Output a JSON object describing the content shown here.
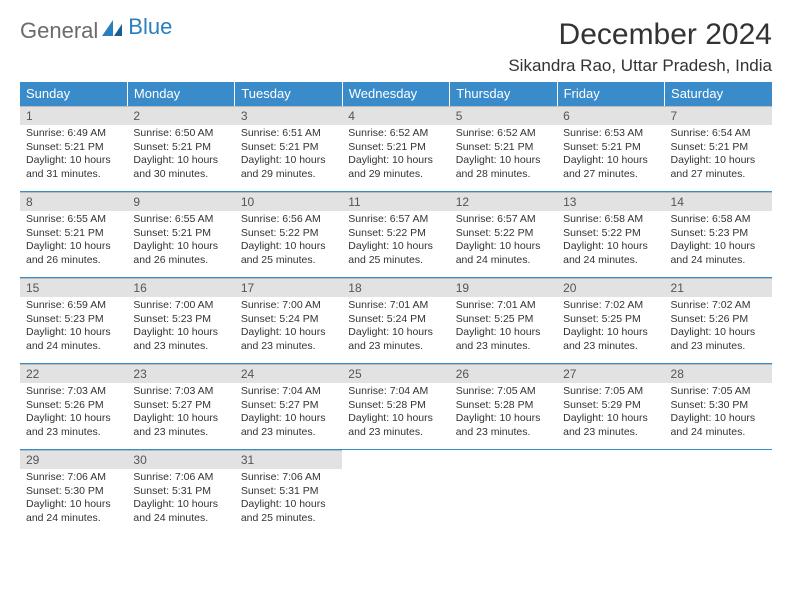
{
  "brand": {
    "first": "General",
    "second": "Blue"
  },
  "title": "December 2024",
  "location": "Sikandra Rao, Uttar Pradesh, India",
  "colors": {
    "header_bg": "#3a8bc9",
    "header_fg": "#ffffff",
    "daynum_bg": "#e2e2e2",
    "border": "#3a8bc9",
    "text": "#333333",
    "brand_grey": "#6b6b6b",
    "brand_blue": "#2a7fbf"
  },
  "weekdays": [
    "Sunday",
    "Monday",
    "Tuesday",
    "Wednesday",
    "Thursday",
    "Friday",
    "Saturday"
  ],
  "days": [
    {
      "n": "1",
      "sunrise": "Sunrise: 6:49 AM",
      "sunset": "Sunset: 5:21 PM",
      "daylight": "Daylight: 10 hours and 31 minutes."
    },
    {
      "n": "2",
      "sunrise": "Sunrise: 6:50 AM",
      "sunset": "Sunset: 5:21 PM",
      "daylight": "Daylight: 10 hours and 30 minutes."
    },
    {
      "n": "3",
      "sunrise": "Sunrise: 6:51 AM",
      "sunset": "Sunset: 5:21 PM",
      "daylight": "Daylight: 10 hours and 29 minutes."
    },
    {
      "n": "4",
      "sunrise": "Sunrise: 6:52 AM",
      "sunset": "Sunset: 5:21 PM",
      "daylight": "Daylight: 10 hours and 29 minutes."
    },
    {
      "n": "5",
      "sunrise": "Sunrise: 6:52 AM",
      "sunset": "Sunset: 5:21 PM",
      "daylight": "Daylight: 10 hours and 28 minutes."
    },
    {
      "n": "6",
      "sunrise": "Sunrise: 6:53 AM",
      "sunset": "Sunset: 5:21 PM",
      "daylight": "Daylight: 10 hours and 27 minutes."
    },
    {
      "n": "7",
      "sunrise": "Sunrise: 6:54 AM",
      "sunset": "Sunset: 5:21 PM",
      "daylight": "Daylight: 10 hours and 27 minutes."
    },
    {
      "n": "8",
      "sunrise": "Sunrise: 6:55 AM",
      "sunset": "Sunset: 5:21 PM",
      "daylight": "Daylight: 10 hours and 26 minutes."
    },
    {
      "n": "9",
      "sunrise": "Sunrise: 6:55 AM",
      "sunset": "Sunset: 5:21 PM",
      "daylight": "Daylight: 10 hours and 26 minutes."
    },
    {
      "n": "10",
      "sunrise": "Sunrise: 6:56 AM",
      "sunset": "Sunset: 5:22 PM",
      "daylight": "Daylight: 10 hours and 25 minutes."
    },
    {
      "n": "11",
      "sunrise": "Sunrise: 6:57 AM",
      "sunset": "Sunset: 5:22 PM",
      "daylight": "Daylight: 10 hours and 25 minutes."
    },
    {
      "n": "12",
      "sunrise": "Sunrise: 6:57 AM",
      "sunset": "Sunset: 5:22 PM",
      "daylight": "Daylight: 10 hours and 24 minutes."
    },
    {
      "n": "13",
      "sunrise": "Sunrise: 6:58 AM",
      "sunset": "Sunset: 5:22 PM",
      "daylight": "Daylight: 10 hours and 24 minutes."
    },
    {
      "n": "14",
      "sunrise": "Sunrise: 6:58 AM",
      "sunset": "Sunset: 5:23 PM",
      "daylight": "Daylight: 10 hours and 24 minutes."
    },
    {
      "n": "15",
      "sunrise": "Sunrise: 6:59 AM",
      "sunset": "Sunset: 5:23 PM",
      "daylight": "Daylight: 10 hours and 24 minutes."
    },
    {
      "n": "16",
      "sunrise": "Sunrise: 7:00 AM",
      "sunset": "Sunset: 5:23 PM",
      "daylight": "Daylight: 10 hours and 23 minutes."
    },
    {
      "n": "17",
      "sunrise": "Sunrise: 7:00 AM",
      "sunset": "Sunset: 5:24 PM",
      "daylight": "Daylight: 10 hours and 23 minutes."
    },
    {
      "n": "18",
      "sunrise": "Sunrise: 7:01 AM",
      "sunset": "Sunset: 5:24 PM",
      "daylight": "Daylight: 10 hours and 23 minutes."
    },
    {
      "n": "19",
      "sunrise": "Sunrise: 7:01 AM",
      "sunset": "Sunset: 5:25 PM",
      "daylight": "Daylight: 10 hours and 23 minutes."
    },
    {
      "n": "20",
      "sunrise": "Sunrise: 7:02 AM",
      "sunset": "Sunset: 5:25 PM",
      "daylight": "Daylight: 10 hours and 23 minutes."
    },
    {
      "n": "21",
      "sunrise": "Sunrise: 7:02 AM",
      "sunset": "Sunset: 5:26 PM",
      "daylight": "Daylight: 10 hours and 23 minutes."
    },
    {
      "n": "22",
      "sunrise": "Sunrise: 7:03 AM",
      "sunset": "Sunset: 5:26 PM",
      "daylight": "Daylight: 10 hours and 23 minutes."
    },
    {
      "n": "23",
      "sunrise": "Sunrise: 7:03 AM",
      "sunset": "Sunset: 5:27 PM",
      "daylight": "Daylight: 10 hours and 23 minutes."
    },
    {
      "n": "24",
      "sunrise": "Sunrise: 7:04 AM",
      "sunset": "Sunset: 5:27 PM",
      "daylight": "Daylight: 10 hours and 23 minutes."
    },
    {
      "n": "25",
      "sunrise": "Sunrise: 7:04 AM",
      "sunset": "Sunset: 5:28 PM",
      "daylight": "Daylight: 10 hours and 23 minutes."
    },
    {
      "n": "26",
      "sunrise": "Sunrise: 7:05 AM",
      "sunset": "Sunset: 5:28 PM",
      "daylight": "Daylight: 10 hours and 23 minutes."
    },
    {
      "n": "27",
      "sunrise": "Sunrise: 7:05 AM",
      "sunset": "Sunset: 5:29 PM",
      "daylight": "Daylight: 10 hours and 23 minutes."
    },
    {
      "n": "28",
      "sunrise": "Sunrise: 7:05 AM",
      "sunset": "Sunset: 5:30 PM",
      "daylight": "Daylight: 10 hours and 24 minutes."
    },
    {
      "n": "29",
      "sunrise": "Sunrise: 7:06 AM",
      "sunset": "Sunset: 5:30 PM",
      "daylight": "Daylight: 10 hours and 24 minutes."
    },
    {
      "n": "30",
      "sunrise": "Sunrise: 7:06 AM",
      "sunset": "Sunset: 5:31 PM",
      "daylight": "Daylight: 10 hours and 24 minutes."
    },
    {
      "n": "31",
      "sunrise": "Sunrise: 7:06 AM",
      "sunset": "Sunset: 5:31 PM",
      "daylight": "Daylight: 10 hours and 25 minutes."
    }
  ]
}
